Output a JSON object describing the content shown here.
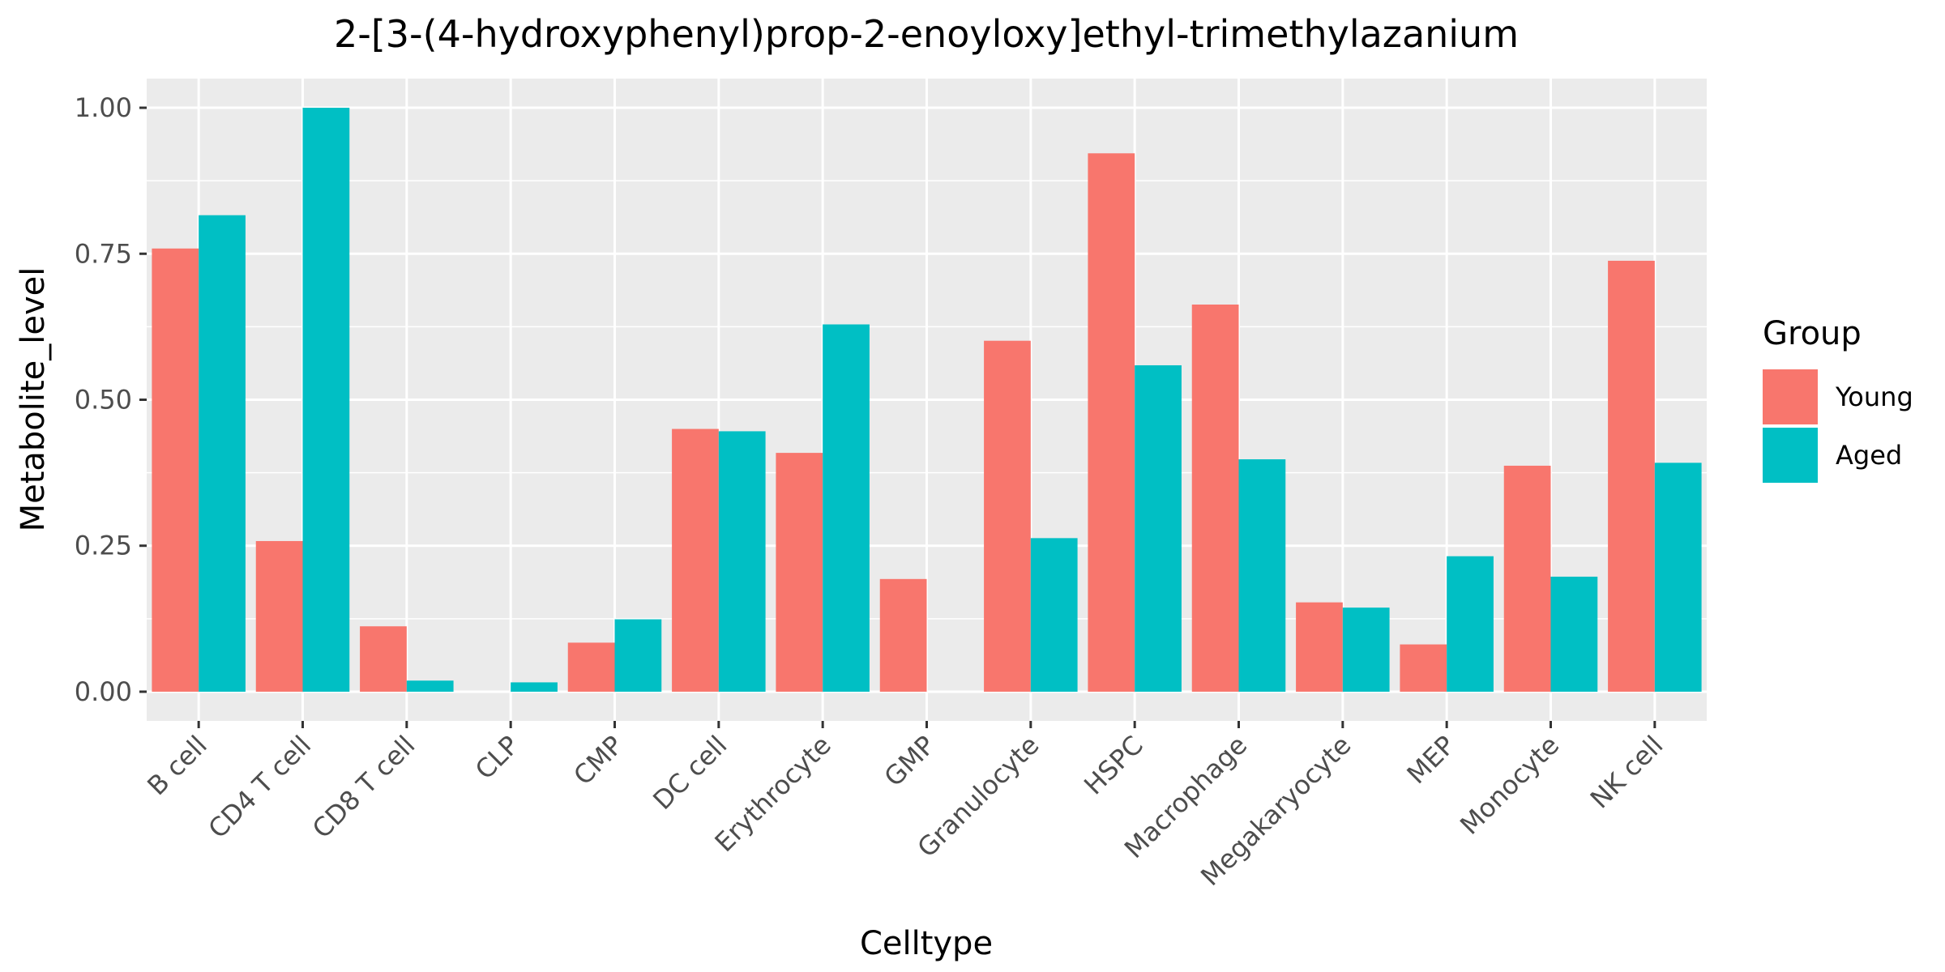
{
  "chart_data": {
    "type": "bar",
    "title": "2-[3-(4-hydroxyphenyl)prop-2-enoyloxy]ethyl-trimethylazanium",
    "xlabel": "Celltype",
    "ylabel": "Metabolite_level",
    "categories": [
      "B cell",
      "CD4 T cell",
      "CD8 T cell",
      "CLP",
      "CMP",
      "DC cell",
      "Erythrocyte",
      "GMP",
      "Granulocyte",
      "HSPC",
      "Macrophage",
      "Megakaryocyte",
      "MEP",
      "Monocyte",
      "NK cell"
    ],
    "series": [
      {
        "name": "Young",
        "color": "#F8766D",
        "values": [
          0.759,
          0.258,
          0.112,
          0.0,
          0.084,
          0.45,
          0.409,
          0.193,
          0.601,
          0.922,
          0.663,
          0.153,
          0.081,
          0.387,
          0.738
        ]
      },
      {
        "name": "Aged",
        "color": "#00BFC4",
        "values": [
          0.816,
          1.0,
          0.019,
          0.016,
          0.124,
          0.446,
          0.629,
          0.0,
          0.263,
          0.559,
          0.398,
          0.144,
          0.232,
          0.197,
          0.392
        ]
      }
    ],
    "ylim": [
      -0.05,
      1.05
    ],
    "yticks": [
      0.0,
      0.25,
      0.5,
      0.75,
      1.0
    ],
    "ytick_labels": [
      "0.00",
      "0.25",
      "0.50",
      "0.75",
      "1.00"
    ],
    "legend": {
      "title": "Group",
      "position": "right"
    },
    "grid": true,
    "panel_background": "#EBEBEB",
    "grid_color": "#FFFFFF"
  }
}
